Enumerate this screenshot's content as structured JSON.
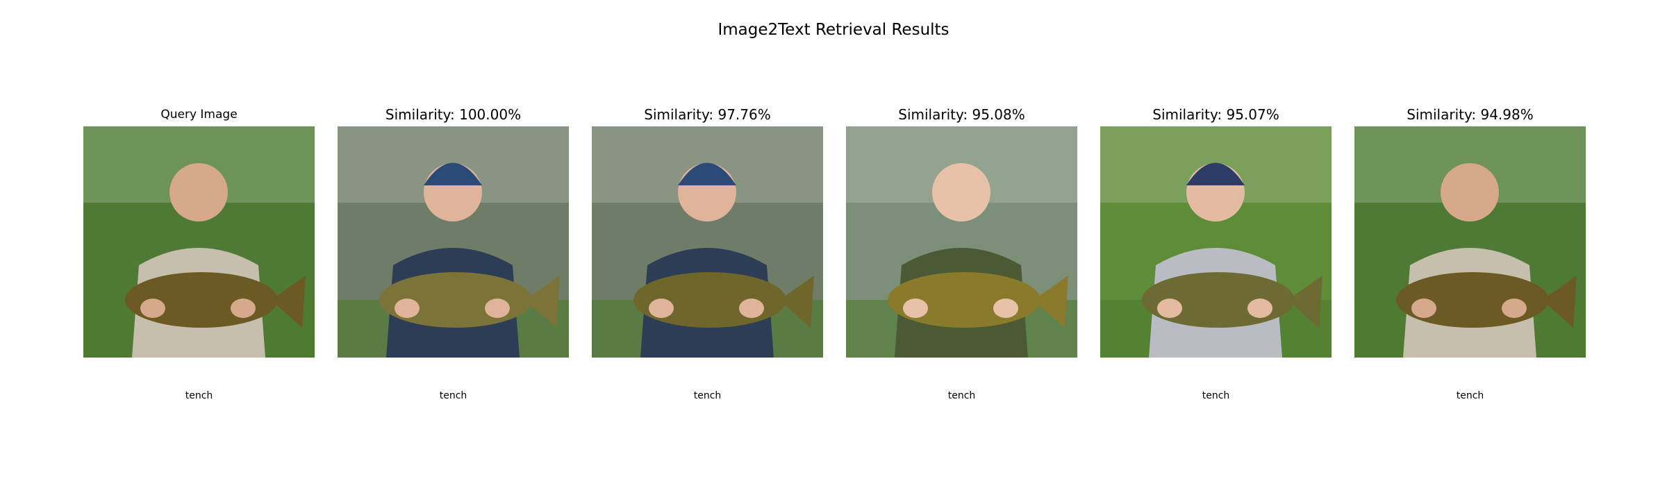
{
  "title": "Image2Text Retrieval Results",
  "panels": [
    {
      "heading": "Query Image",
      "caption": "tench",
      "bg": "#4e7a36",
      "fish": "#6b5a23",
      "shirt": "#c7bfae",
      "skin": "#d6a98d",
      "hat": ""
    },
    {
      "heading": "Similarity: 100.00%",
      "caption": "tench",
      "bg": "#6f7d68",
      "fish": "#7b7338",
      "shirt": "#2c3d55",
      "skin": "#e0b49a",
      "hat": "#2c4a78"
    },
    {
      "heading": "Similarity: 97.76%",
      "caption": "tench",
      "bg": "#6f7d68",
      "fish": "#6f662c",
      "shirt": "#2c3d55",
      "skin": "#e0b49a",
      "hat": "#2c4a78"
    },
    {
      "heading": "Similarity: 95.08%",
      "caption": "tench",
      "bg": "#7c8f78",
      "fish": "#8a7a2c",
      "shirt": "#4b5a34",
      "skin": "#e8c2a8",
      "hat": ""
    },
    {
      "heading": "Similarity: 95.07%",
      "caption": "tench",
      "bg": "#5f8c39",
      "fish": "#6d6a34",
      "shirt": "#b9bcc2",
      "skin": "#e2bba1",
      "hat": "#2c3c66"
    },
    {
      "heading": "Similarity: 94.98%",
      "caption": "tench",
      "bg": "#4e7a36",
      "fish": "#6b5a23",
      "shirt": "#c7bfae",
      "skin": "#d6a98d",
      "hat": ""
    }
  ]
}
